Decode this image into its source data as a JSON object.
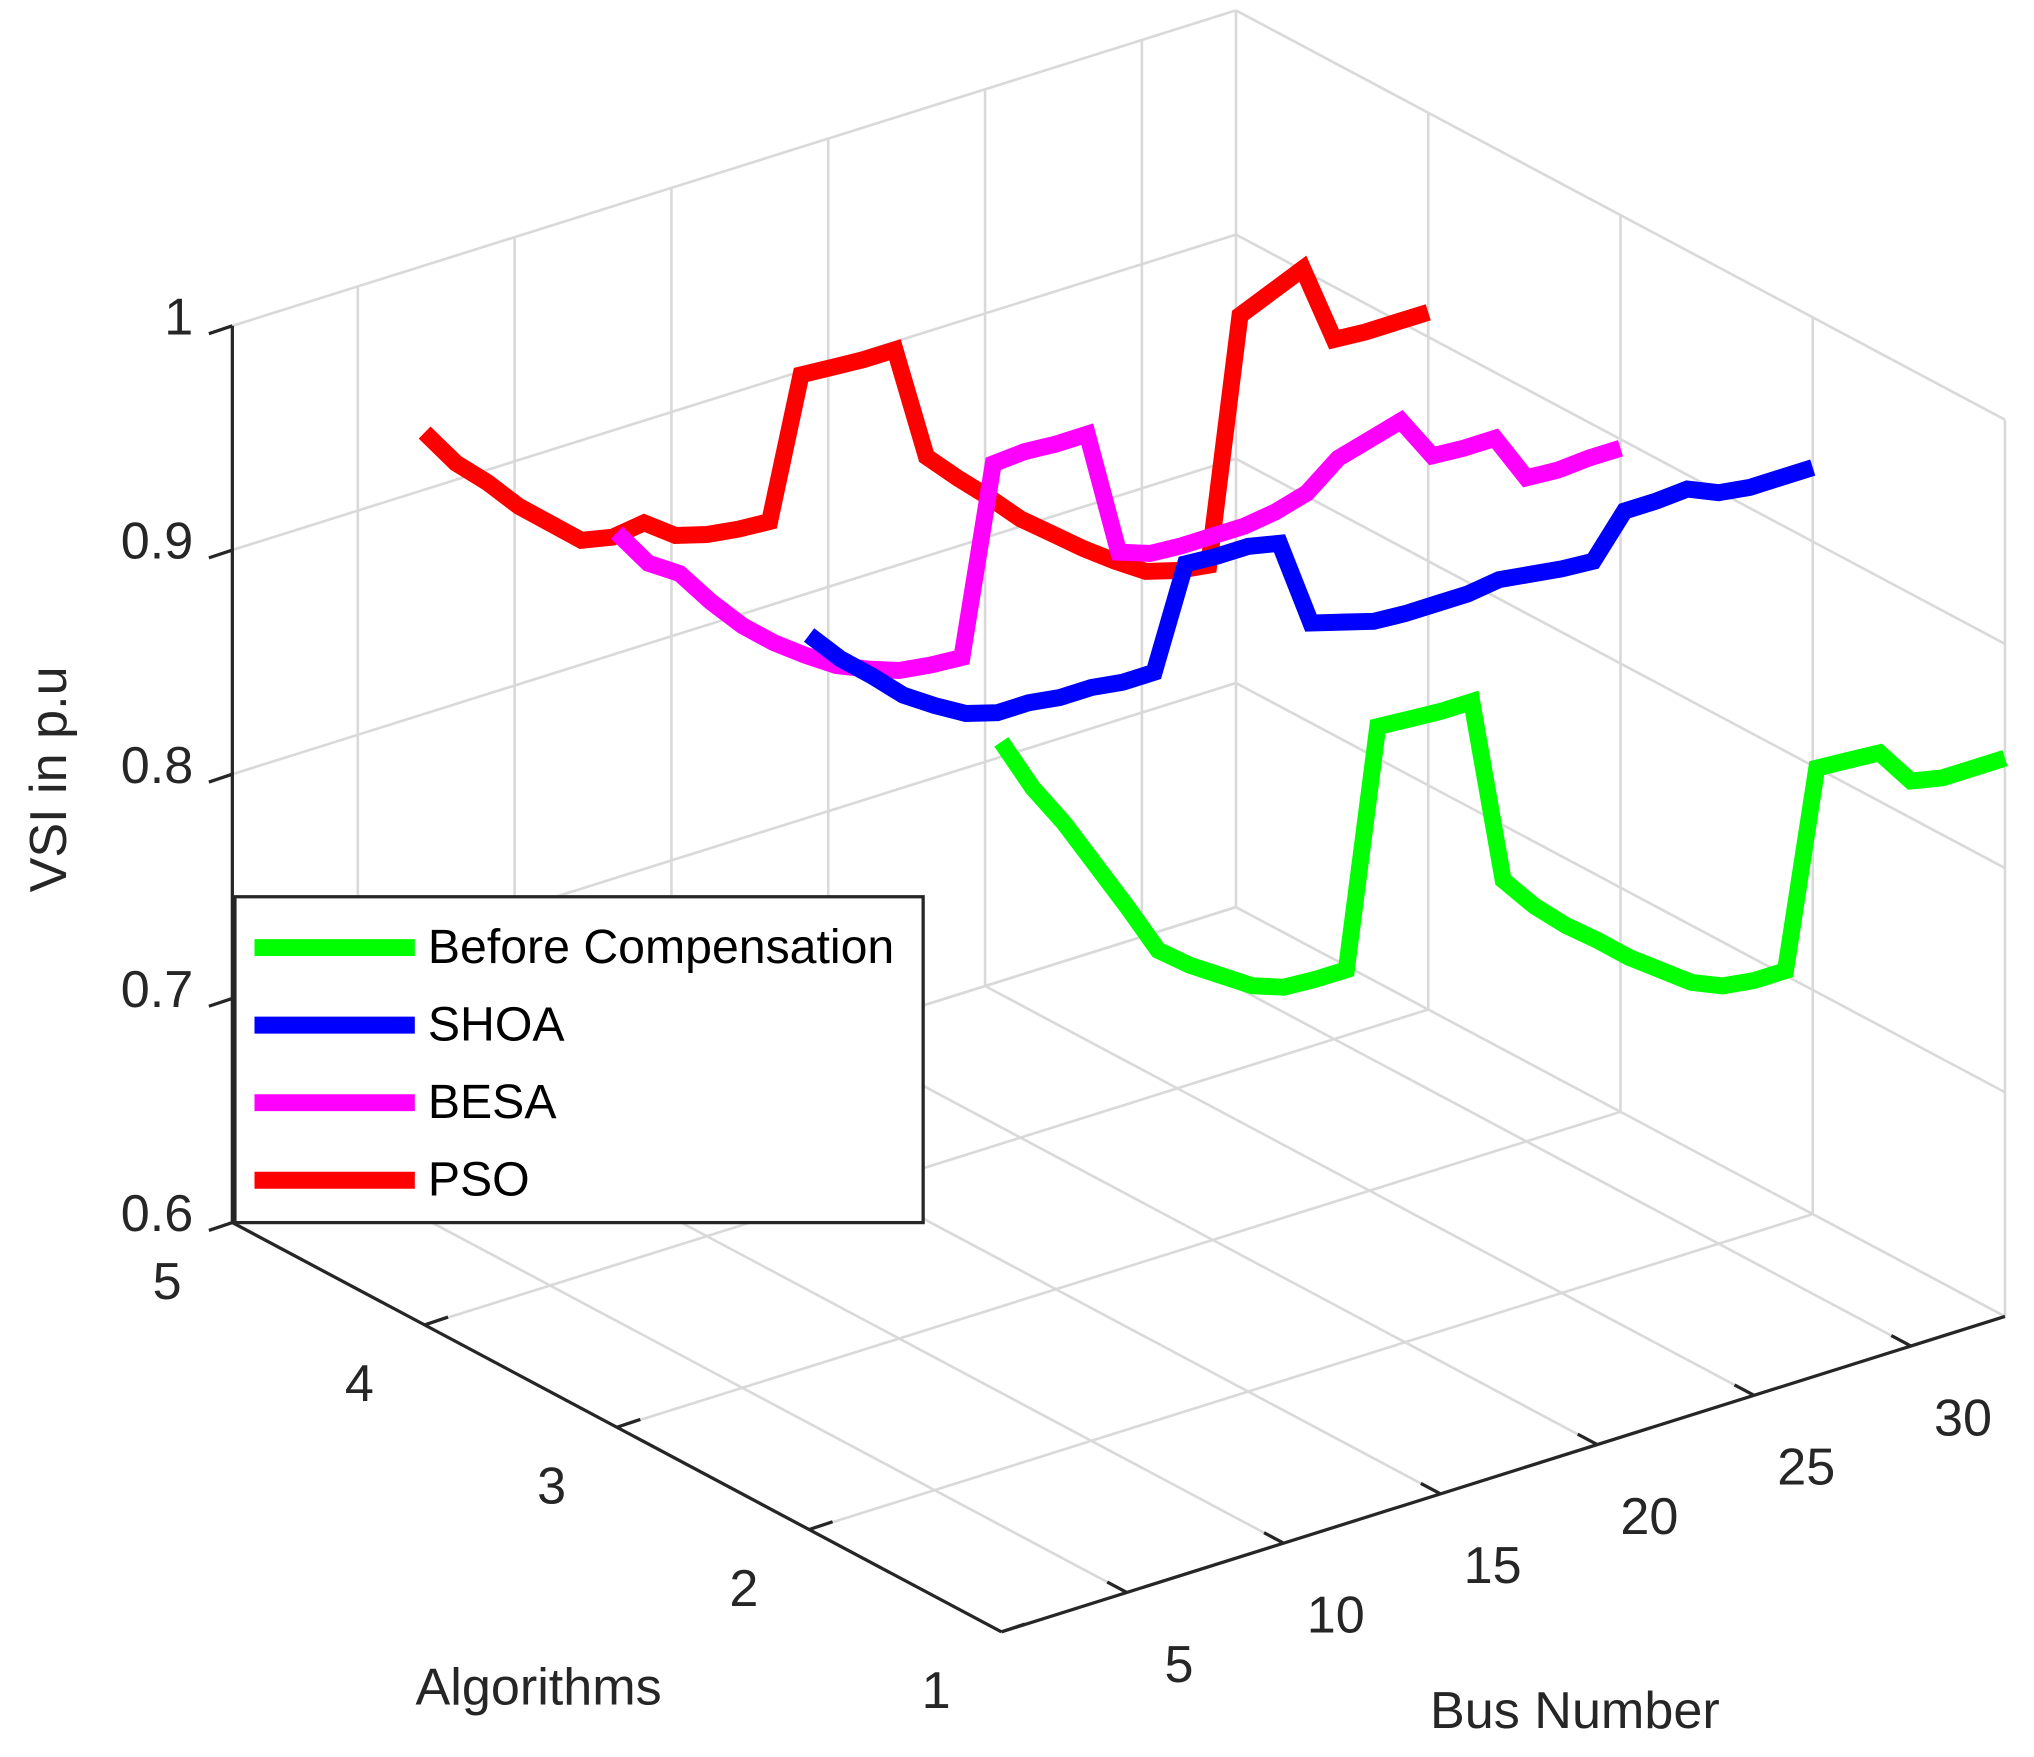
{
  "chart_data": {
    "type": "line3d",
    "xlabel": "Bus Number",
    "ylabel": "Algorithms",
    "zlabel": "VSI in p.u",
    "x": [
      1,
      2,
      3,
      4,
      5,
      6,
      7,
      8,
      9,
      10,
      11,
      12,
      13,
      14,
      15,
      16,
      17,
      18,
      19,
      20,
      21,
      22,
      23,
      24,
      25,
      26,
      27,
      28,
      29,
      30,
      31,
      32,
      33
    ],
    "series": [
      {
        "name": "Before Compensation",
        "color": "#00ff00",
        "algorithm": 1,
        "values": [
          0.997,
          0.972,
          0.952,
          0.929,
          0.906,
          0.882,
          0.871,
          0.862,
          0.853,
          0.848,
          0.847,
          0.847,
          0.951,
          0.95,
          0.949,
          0.949,
          0.865,
          0.849,
          0.836,
          0.825,
          0.813,
          0.803,
          0.793,
          0.787,
          0.785,
          0.785,
          0.871,
          0.87,
          0.869,
          0.852,
          0.849,
          0.849,
          0.849
        ]
      },
      {
        "name": "SHOA",
        "color": "#0000ff",
        "algorithm": 2,
        "values": [
          0.999,
          0.984,
          0.972,
          0.959,
          0.95,
          0.942,
          0.938,
          0.938,
          0.936,
          0.936,
          0.934,
          0.934,
          0.978,
          0.977,
          0.977,
          0.974,
          0.934,
          0.93,
          0.926,
          0.925,
          0.925,
          0.925,
          0.927,
          0.925,
          0.923,
          0.922,
          0.94,
          0.94,
          0.941,
          0.935,
          0.933,
          0.933,
          0.933
        ]
      },
      {
        "name": "BESA",
        "color": "#ff00ff",
        "algorithm": 3,
        "values": [
          0.999,
          0.981,
          0.972,
          0.955,
          0.94,
          0.928,
          0.918,
          0.909,
          0.903,
          0.898,
          0.896,
          0.895,
          0.977,
          0.978,
          0.977,
          0.977,
          0.92,
          0.915,
          0.914,
          0.914,
          0.914,
          0.916,
          0.92,
          0.931,
          0.935,
          0.939,
          0.919,
          0.918,
          0.918,
          0.896,
          0.895,
          0.896,
          0.896
        ]
      },
      {
        "name": "PSO",
        "color": "#ff0000",
        "algorithm": 4,
        "values": [
          0.998,
          0.98,
          0.967,
          0.952,
          0.94,
          0.928,
          0.925,
          0.927,
          0.917,
          0.913,
          0.911,
          0.91,
          0.971,
          0.97,
          0.969,
          0.969,
          0.917,
          0.903,
          0.89,
          0.876,
          0.865,
          0.854,
          0.844,
          0.835,
          0.831,
          0.829,
          0.936,
          0.942,
          0.948,
          0.912,
          0.911,
          0.911,
          0.911
        ]
      }
    ],
    "xlim": [
      1,
      33
    ],
    "xticks": [
      5,
      10,
      15,
      20,
      25,
      30
    ],
    "ylim": [
      1,
      5
    ],
    "yticks": [
      1,
      2,
      3,
      4,
      5
    ],
    "zlim": [
      0.6,
      1
    ],
    "zticks": [
      0.6,
      0.7,
      0.8,
      0.9,
      1
    ],
    "grid": true,
    "legend": "southwest"
  }
}
